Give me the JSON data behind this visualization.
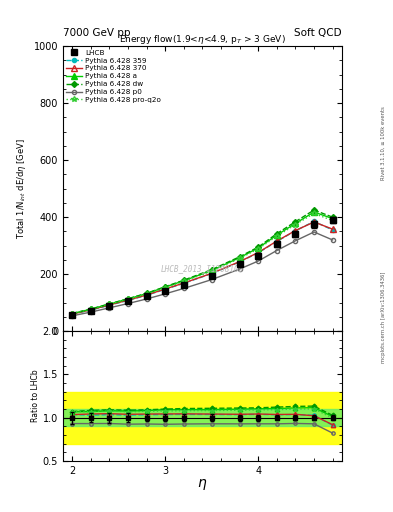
{
  "title_left": "7000 GeV pp",
  "title_right": "Soft QCD",
  "plot_title": "Energy flow(1.9<η<4.9, p_{T} > 3 GeV)",
  "ylabel_main": "Total 1/N$_{int}$ dE/dη [GeV]",
  "ylabel_ratio": "Ratio to LHCb",
  "xlabel": "η",
  "right_label_top": "Rivet 3.1.10, ≥ 100k events",
  "right_label_bottom": "mcplots.cern.ch [arXiv:1306.3436]",
  "watermark": "LHCB_2013_I1208105",
  "ylim_main": [
    0,
    1000
  ],
  "ylim_ratio": [
    0.5,
    2.0
  ],
  "xlim": [
    1.9,
    4.9
  ],
  "eta_values": [
    2.0,
    2.2,
    2.4,
    2.6,
    2.8,
    3.0,
    3.2,
    3.5,
    3.8,
    4.0,
    4.2,
    4.4,
    4.6,
    4.8
  ],
  "lhcb_values": [
    58,
    72,
    88,
    105,
    122,
    142,
    162,
    195,
    235,
    265,
    305,
    340,
    375,
    390
  ],
  "lhcb_errors": [
    4,
    4,
    5,
    5,
    5,
    6,
    6,
    7,
    8,
    9,
    10,
    11,
    12,
    12
  ],
  "series": [
    {
      "label": "Pythia 6.428 359",
      "color": "#00BBBB",
      "linestyle": "--",
      "marker": "o",
      "markerfacecolor": "#00BBBB",
      "markersize": 3,
      "values": [
        60,
        74,
        91,
        108,
        126,
        147,
        168,
        202,
        243,
        275,
        315,
        352,
        385,
        355
      ]
    },
    {
      "label": "Pythia 6.428 370",
      "color": "#CC2222",
      "linestyle": "-",
      "marker": "^",
      "markerfacecolor": "none",
      "markersize": 4,
      "values": [
        60,
        75,
        92,
        109,
        127,
        148,
        169,
        203,
        244,
        276,
        316,
        353,
        383,
        358
      ]
    },
    {
      "label": "Pythia 6.428 a",
      "color": "#00CC00",
      "linestyle": "-",
      "marker": "^",
      "markerfacecolor": "#00CC00",
      "markersize": 4,
      "values": [
        62,
        77,
        95,
        113,
        132,
        155,
        177,
        213,
        258,
        292,
        337,
        378,
        418,
        395
      ]
    },
    {
      "label": "Pythia 6.428 dw",
      "color": "#009900",
      "linestyle": "--",
      "marker": "D",
      "markerfacecolor": "#009900",
      "markersize": 3,
      "values": [
        62,
        78,
        96,
        114,
        133,
        156,
        179,
        216,
        261,
        295,
        342,
        384,
        425,
        400
      ]
    },
    {
      "label": "Pythia 6.428 p0",
      "color": "#666666",
      "linestyle": "-",
      "marker": "o",
      "markerfacecolor": "none",
      "markersize": 3,
      "values": [
        54,
        67,
        82,
        97,
        113,
        131,
        150,
        181,
        218,
        246,
        283,
        317,
        348,
        320
      ]
    },
    {
      "label": "Pythia 6.428 pro-q2o",
      "color": "#33CC33",
      "linestyle": ":",
      "marker": "*",
      "markerfacecolor": "none",
      "markersize": 4,
      "values": [
        62,
        77,
        95,
        112,
        131,
        153,
        175,
        211,
        255,
        289,
        333,
        374,
        413,
        388
      ]
    }
  ],
  "band_yellow": [
    0.7,
    1.3
  ],
  "band_green": [
    0.9,
    1.1
  ]
}
